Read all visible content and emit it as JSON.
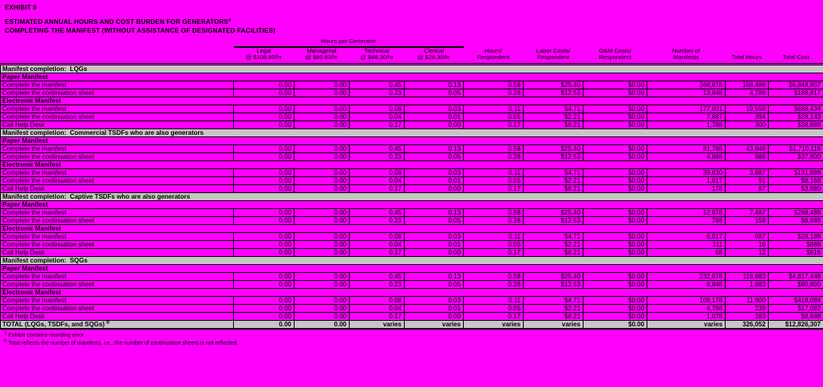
{
  "page_bg": "#ff00ff",
  "title": {
    "exhibit": "EXHIBIT 8",
    "line1": "ESTIMATED ANNUAL HOURS AND COST BURDEN FOR GENERATORS",
    "line1_sup": "a",
    "line2": "COMPLETING THE MANIFEST (WITHOUT ASSISTANCE OF DESIGNATED FACILITIES)"
  },
  "table": {
    "group_header": "Hours per Generator",
    "columns": [
      {
        "label": "Legal",
        "sub": "@ $108.80/hr"
      },
      {
        "label": "Managerial",
        "sub": "@ $80.83/hr"
      },
      {
        "label": "Technical",
        "sub": "@ $48.30/hr"
      },
      {
        "label": "Clerical",
        "sub": "@ $28.30/hr"
      },
      {
        "label": "Hours/",
        "sub": "Respondent"
      },
      {
        "label": "Labor Costs/",
        "sub": "Respondent"
      },
      {
        "label": "O&M Costs/",
        "sub": "Respondent"
      },
      {
        "label": "Number of",
        "sub": "Manifests"
      },
      {
        "label": "Total Hours",
        "sub": ""
      },
      {
        "label": "Total Cost",
        "sub": ""
      }
    ],
    "sections": [
      {
        "title": "Manifest completion:  LQGs",
        "groups": [
          {
            "title": "Paper Manifest",
            "rows": [
              {
                "label": "Complete the manifest",
                "values": [
                  "0.00",
                  "0.00",
                  "0.45",
                  "0.13",
                  "0.58",
                  "$25.40",
                  "$0.00",
                  "368,878",
                  "188,488",
                  "$6,848,807"
                ]
              },
              {
                "label": "Complete the continuation sheet",
                "values": [
                  "0.00",
                  "0.00",
                  "0.23",
                  "0.05",
                  "0.28",
                  "$12.53",
                  "$0.00",
                  "13,848",
                  "4,788",
                  "$188,817"
                ]
              }
            ]
          },
          {
            "title": "Electronic Manifest",
            "rows": [
              {
                "label": "Complete the manifest",
                "values": [
                  "0.00",
                  "0.00",
                  "0.08",
                  "0.03",
                  "0.11",
                  "$4.71",
                  "$0.00",
                  "177,801",
                  "19,558",
                  "$688,434"
                ]
              },
              {
                "label": "Complete the continuation sheet",
                "values": [
                  "0.00",
                  "0.00",
                  "0.04",
                  "0.01",
                  "0.05",
                  "$2.21",
                  "$0.00",
                  "7,887",
                  "394",
                  "$28,143"
                ]
              },
              {
                "label": "Call Help Desk",
                "values": [
                  "0.00",
                  "0.00",
                  "0.17",
                  "0.00",
                  "0.17",
                  "$8.21",
                  "$0.00",
                  "1,788",
                  "300",
                  "$38,888"
                ]
              }
            ]
          }
        ]
      },
      {
        "title": "Manifest completion:  Commercial TSDFs who are also generators",
        "groups": [
          {
            "title": "Paper Manifest",
            "rows": [
              {
                "label": "Complete the manifest",
                "values": [
                  "0.00",
                  "0.00",
                  "0.45",
                  "0.13",
                  "0.58",
                  "$25.40",
                  "$0.00",
                  "81,788",
                  "43,848",
                  "$1,710,118"
                ]
              },
              {
                "label": "Complete the continuation sheet",
                "values": [
                  "0.00",
                  "0.00",
                  "0.23",
                  "0.05",
                  "0.28",
                  "$12.53",
                  "$0.00",
                  "4,888",
                  "988",
                  "$37,800"
                ]
              }
            ]
          },
          {
            "title": "Electronic Manifest",
            "rows": [
              {
                "label": "Complete the manifest",
                "values": [
                  "0.00",
                  "0.00",
                  "0.08",
                  "0.03",
                  "0.11",
                  "$4.71",
                  "$0.00",
                  "39,830",
                  "3,887",
                  "$131,888"
                ]
              },
              {
                "label": "Complete the continuation sheet",
                "values": [
                  "0.00",
                  "0.00",
                  "0.04",
                  "0.01",
                  "0.05",
                  "$2.21",
                  "$0.00",
                  "1,817",
                  "91",
                  "$8,168"
                ]
              },
              {
                "label": "Call Help Desk",
                "values": [
                  "0.00",
                  "0.00",
                  "0.17",
                  "0.00",
                  "0.17",
                  "$8.21",
                  "$0.00",
                  "178",
                  "87",
                  "$3,880"
                ]
              }
            ]
          }
        ]
      },
      {
        "title": "Manifest completion:  Captive TSDFs who are also generators",
        "groups": [
          {
            "title": "Paper Manifest",
            "rows": [
              {
                "label": "Complete the manifest",
                "values": [
                  "0.00",
                  "0.00",
                  "0.45",
                  "0.13",
                  "0.58",
                  "$25.40",
                  "$0.00",
                  "12,878",
                  "7,487",
                  "$288,488"
                ]
              },
              {
                "label": "Complete the continuation sheet",
                "values": [
                  "0.00",
                  "0.00",
                  "0.23",
                  "0.05",
                  "0.28",
                  "$12.53",
                  "$0.00",
                  "788",
                  "158",
                  "$6,848"
                ]
              }
            ]
          },
          {
            "title": "Electronic Manifest",
            "rows": [
              {
                "label": "Complete the manifest",
                "values": [
                  "0.00",
                  "0.00",
                  "0.08",
                  "0.03",
                  "0.11",
                  "$4.71",
                  "$0.00",
                  "6,817",
                  "687",
                  "$28,188"
                ]
              },
              {
                "label": "Complete the continuation sheet",
                "values": [
                  "0.00",
                  "0.00",
                  "0.04",
                  "0.01",
                  "0.05",
                  "$2.21",
                  "$0.00",
                  "311",
                  "16",
                  "$888"
                ]
              },
              {
                "label": "Call Help Desk",
                "values": [
                  "0.00",
                  "0.00",
                  "0.17",
                  "0.00",
                  "0.17",
                  "$8.21",
                  "$0.00",
                  "68",
                  "12",
                  "$618"
                ]
              }
            ]
          }
        ]
      },
      {
        "title": "Manifest completion:  SQGs",
        "groups": [
          {
            "title": "Paper Manifest",
            "rows": [
              {
                "label": "Complete the manifest",
                "values": [
                  "0.00",
                  "0.00",
                  "0.45",
                  "0.13",
                  "0.58",
                  "$25.40",
                  "$0.00",
                  "232,878",
                  "118,883",
                  "$4,817,448"
                ]
              },
              {
                "label": "Complete the continuation sheet",
                "values": [
                  "0.00",
                  "0.00",
                  "0.23",
                  "0.05",
                  "0.28",
                  "$12.53",
                  "$0.00",
                  "8,848",
                  "1,883",
                  "$80,800"
                ]
              }
            ]
          },
          {
            "title": "Electronic Manifest",
            "rows": [
              {
                "label": "Complete the manifest",
                "values": [
                  "0.00",
                  "0.00",
                  "0.08",
                  "0.03",
                  "0.11",
                  "$4.71",
                  "$0.00",
                  "108,178",
                  "11,900",
                  "$418,084"
                ]
              },
              {
                "label": "Complete the continuation sheet",
                "values": [
                  "0.00",
                  "0.00",
                  "0.04",
                  "0.01",
                  "0.05",
                  "$2.21",
                  "$0.00",
                  "4,788",
                  "239",
                  "$17,082"
                ]
              },
              {
                "label": "Call Help Desk",
                "values": [
                  "0.00",
                  "0.00",
                  "0.17",
                  "0.00",
                  "0.17",
                  "$8.21",
                  "$0.00",
                  "1,078",
                  "183",
                  "$8,848"
                ]
              }
            ]
          }
        ]
      }
    ],
    "total_row": {
      "label": "TOTAL (LQGs, TSDFs, and SQGs)",
      "label_sup": "b",
      "values": [
        "0.00",
        "0.00",
        "varies",
        "varies",
        "varies",
        "varies",
        "$0.00",
        "varies",
        "326,052",
        "$12,826,307"
      ]
    }
  },
  "footnotes": [
    {
      "sup": "a",
      "text": "Exhibit contains rounding error."
    },
    {
      "sup": "b",
      "text": "Total reflects the number of manifests, i.e., the number of continuation sheets is not reflected."
    }
  ],
  "colors": {
    "background": "#ff00ff",
    "section_band": "#c6c6c6",
    "border": "#000000",
    "text": "#000000"
  }
}
